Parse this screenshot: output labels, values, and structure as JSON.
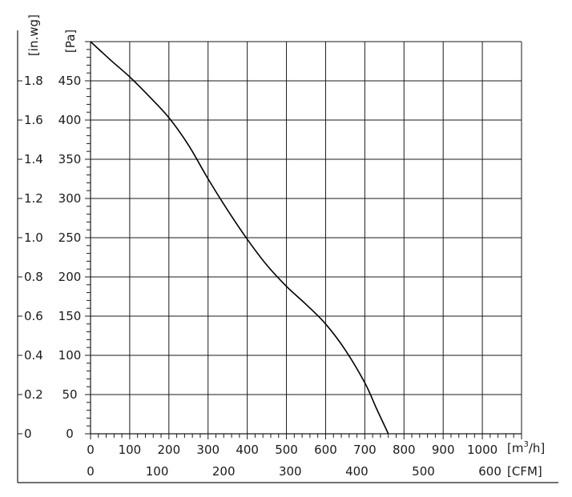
{
  "chart_data": {
    "type": "line",
    "title": "",
    "grid": true,
    "x_axis": {
      "unit_label": "[m³/h]",
      "unit_base": "[m",
      "unit_sup": "3",
      "unit_tail": "/h]",
      "range": [
        0,
        1100
      ],
      "ticks": [
        0,
        100,
        200,
        300,
        400,
        500,
        600,
        700,
        800,
        900,
        1000
      ]
    },
    "x_axis_secondary": {
      "unit_label": "[CFM]",
      "ticks": [
        0,
        100,
        200,
        300,
        400,
        500,
        600
      ]
    },
    "y_axis": {
      "unit_label": "[Pa]",
      "range": [
        0,
        500
      ],
      "ticks": [
        0,
        50,
        100,
        150,
        200,
        250,
        300,
        350,
        400,
        450
      ]
    },
    "y_axis_secondary": {
      "unit_label": "[in.wg]",
      "tick_labels": [
        "0",
        "0.2",
        "0.4",
        "0.6",
        "0.8",
        "1.0",
        "1.2",
        "1.4",
        "1.6",
        "1.8"
      ]
    },
    "series": [
      {
        "x": [
          0,
          50,
          100,
          150,
          200,
          250,
          300,
          350,
          400,
          450,
          500,
          550,
          600,
          650,
          700,
          730,
          760
        ],
        "y": [
          500,
          477,
          455,
          430,
          403,
          368,
          325,
          285,
          248,
          215,
          188,
          165,
          140,
          107,
          65,
          32,
          0
        ]
      }
    ]
  }
}
